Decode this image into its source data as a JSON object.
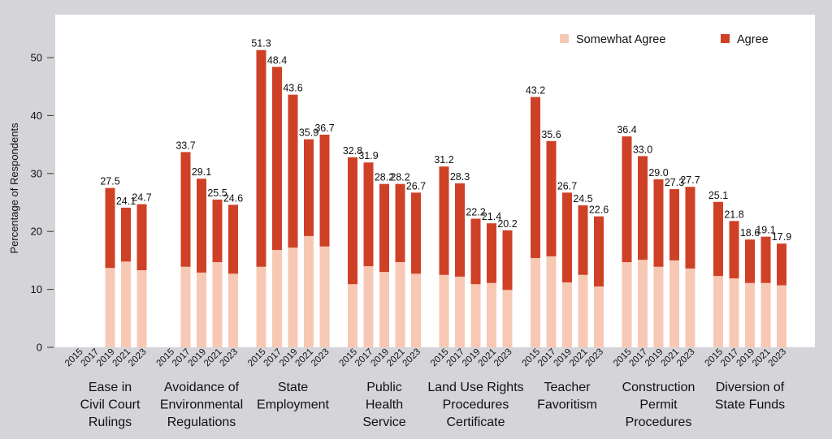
{
  "chart_data": {
    "type": "bar",
    "stacked": true,
    "title": "",
    "xlabel": "",
    "ylabel": "Percentage of Respondents",
    "ylim": [
      0,
      55
    ],
    "yticks": [
      0,
      10,
      20,
      30,
      40,
      50
    ],
    "grid": false,
    "legend_position": "top-right",
    "years": [
      "2015",
      "2017",
      "2019",
      "2021",
      "2023"
    ],
    "series": [
      {
        "name": "Somewhat Agree",
        "color": "#f7c9b4"
      },
      {
        "name": "Agree",
        "color": "#cf4127"
      }
    ],
    "groups": [
      {
        "label": [
          "Ease in",
          "Civil Court",
          "Rulings"
        ],
        "totals": [
          null,
          null,
          27.5,
          24.1,
          24.7
        ],
        "somewhat_agree": [
          null,
          null,
          13.7,
          14.8,
          13.3
        ]
      },
      {
        "label": [
          "Avoidance of",
          "Environmental",
          "Regulations"
        ],
        "totals": [
          null,
          33.7,
          29.1,
          25.5,
          24.6
        ],
        "somewhat_agree": [
          null,
          13.9,
          12.9,
          14.7,
          12.7
        ]
      },
      {
        "label": [
          "State",
          "Employment"
        ],
        "totals": [
          51.3,
          48.4,
          43.6,
          35.9,
          36.7
        ],
        "somewhat_agree": [
          13.9,
          16.8,
          17.2,
          19.2,
          17.4
        ]
      },
      {
        "label": [
          "Public",
          "Health",
          "Service"
        ],
        "totals": [
          32.8,
          31.9,
          28.2,
          28.2,
          26.7
        ],
        "somewhat_agree": [
          10.9,
          14.0,
          13.0,
          14.7,
          12.7
        ]
      },
      {
        "label": [
          "Land Use Rights",
          "Procedures",
          "Certificate"
        ],
        "totals": [
          31.2,
          28.3,
          22.2,
          21.4,
          20.2
        ],
        "somewhat_agree": [
          12.5,
          12.2,
          10.9,
          11.1,
          9.9
        ]
      },
      {
        "label": [
          "Teacher",
          "Favoritism"
        ],
        "totals": [
          43.2,
          35.6,
          26.7,
          24.5,
          22.6
        ],
        "somewhat_agree": [
          15.4,
          15.7,
          11.2,
          12.5,
          10.5
        ]
      },
      {
        "label": [
          "Construction",
          "Permit",
          "Procedures"
        ],
        "totals": [
          36.4,
          33.0,
          29.0,
          27.3,
          27.7
        ],
        "somewhat_agree": [
          14.7,
          15.1,
          13.9,
          15.0,
          13.6
        ]
      },
      {
        "label": [
          "Diversion of",
          "State Funds"
        ],
        "totals": [
          25.1,
          21.8,
          18.6,
          19.1,
          17.9
        ],
        "somewhat_agree": [
          12.3,
          11.9,
          11.1,
          11.1,
          10.7
        ]
      }
    ]
  },
  "legend": {
    "items": [
      {
        "label": "Somewhat Agree",
        "color": "#f7c9b4"
      },
      {
        "label": "Agree",
        "color": "#cf4127"
      }
    ]
  },
  "colors": {
    "background": "#d5d5d9",
    "plot_background": "#ffffff",
    "text": "#111111"
  }
}
